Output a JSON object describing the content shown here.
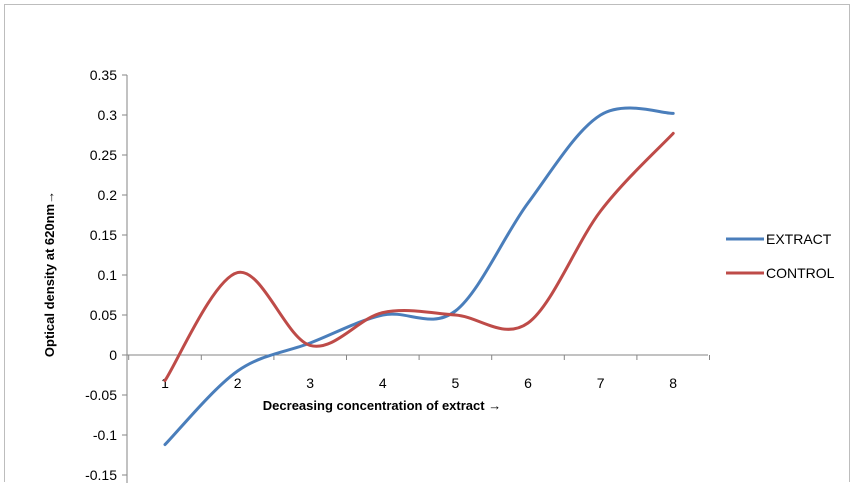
{
  "chart_data": {
    "type": "line",
    "title": "",
    "xlabel": "Decreasing concentration  of extract →",
    "ylabel": "Optical density at 620nm→",
    "x": [
      1,
      2,
      3,
      4,
      5,
      6,
      7,
      8
    ],
    "x_tick_labels": [
      "1",
      "2",
      "3",
      "4",
      "5",
      "6",
      "7",
      "8"
    ],
    "y_tick_labels": [
      "0.35",
      "0.3",
      "0.25",
      "0.2",
      "0.15",
      "0.1",
      "0.05",
      "0",
      "-0.05",
      "-0.1",
      "-0.15"
    ],
    "ylim": [
      -0.15,
      0.35
    ],
    "y_ticks": [
      0.35,
      0.3,
      0.25,
      0.2,
      0.15,
      0.1,
      0.05,
      0,
      -0.05,
      -0.1,
      -0.15
    ],
    "smooth": true,
    "grid": false,
    "legend_position": "right",
    "series": [
      {
        "name": "EXTRACT",
        "color": "#4a7ebb",
        "values": [
          -0.112,
          -0.02,
          0.015,
          0.05,
          0.055,
          0.19,
          0.3,
          0.302
        ]
      },
      {
        "name": "CONTROL",
        "color": "#be4b48",
        "values": [
          -0.032,
          0.103,
          0.012,
          0.053,
          0.05,
          0.04,
          0.18,
          0.277
        ]
      }
    ]
  }
}
